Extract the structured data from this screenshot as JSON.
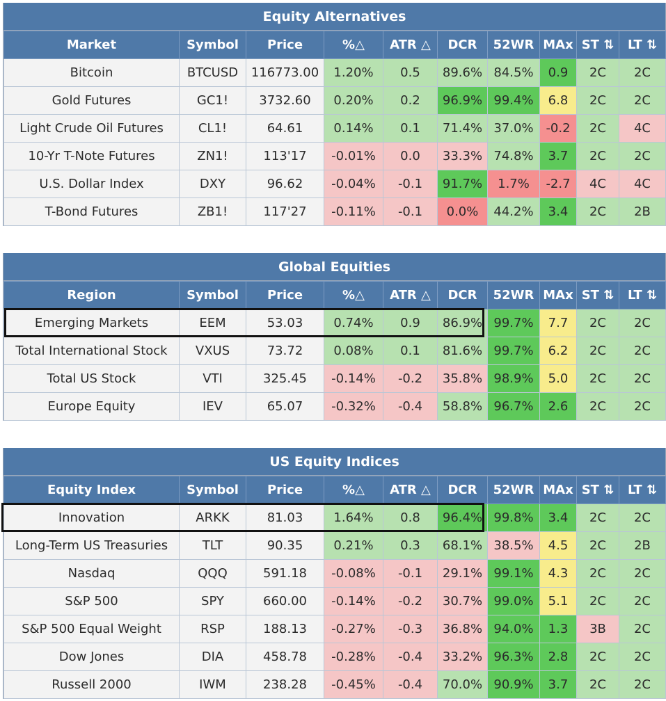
{
  "colors": {
    "header_bg": "#4f79a8",
    "green_light": "#b7e1b0",
    "green_strong": "#5ec95a",
    "red_light": "#f5c6c6",
    "red_strong": "#f59090",
    "yellow": "#f8ec8c"
  },
  "sections": [
    {
      "title": "Equity Alternatives",
      "headers": [
        "Market",
        "Symbol",
        "Price",
        "%△",
        "ATR △",
        "DCR",
        "52WR",
        "MAx",
        "ST ⇅",
        "LT ⇅"
      ],
      "rows": [
        {
          "name": "Bitcoin",
          "symbol": "BTCUSD",
          "price": "116773.00",
          "pct": "1.20%",
          "atr": "0.5",
          "dcr": "89.6%",
          "wr52": "84.5%",
          "max": "0.9",
          "st": "2C",
          "lt": "2C",
          "colors": [
            "g",
            "g",
            "g",
            "g",
            "G",
            "g",
            "g"
          ]
        },
        {
          "name": "Gold Futures",
          "symbol": "GC1!",
          "price": "3732.60",
          "pct": "0.20%",
          "atr": "0.2",
          "dcr": "96.9%",
          "wr52": "99.4%",
          "max": "6.8",
          "st": "2C",
          "lt": "2C",
          "colors": [
            "g",
            "g",
            "G",
            "G",
            "y",
            "g",
            "g"
          ]
        },
        {
          "name": "Light Crude Oil Futures",
          "symbol": "CL1!",
          "price": "64.61",
          "pct": "0.14%",
          "atr": "0.1",
          "dcr": "71.4%",
          "wr52": "37.0%",
          "max": "-0.2",
          "st": "2C",
          "lt": "4C",
          "colors": [
            "g",
            "g",
            "g",
            "g",
            "R",
            "g",
            "r"
          ]
        },
        {
          "name": "10-Yr T-Note Futures",
          "symbol": "ZN1!",
          "price": "113'17",
          "pct": "-0.01%",
          "atr": "0.0",
          "dcr": "33.3%",
          "wr52": "74.8%",
          "max": "3.7",
          "st": "2C",
          "lt": "2C",
          "colors": [
            "r",
            "r",
            "r",
            "g",
            "G",
            "g",
            "g"
          ]
        },
        {
          "name": "U.S. Dollar Index",
          "symbol": "DXY",
          "price": "96.62",
          "pct": "-0.04%",
          "atr": "-0.1",
          "dcr": "91.7%",
          "wr52": "1.7%",
          "max": "-2.7",
          "st": "4C",
          "lt": "4C",
          "colors": [
            "r",
            "r",
            "G",
            "R",
            "R",
            "r",
            "r"
          ]
        },
        {
          "name": "T-Bond Futures",
          "symbol": "ZB1!",
          "price": "117'27",
          "pct": "-0.11%",
          "atr": "-0.1",
          "dcr": "0.0%",
          "wr52": "44.2%",
          "max": "3.4",
          "st": "2C",
          "lt": "2B",
          "colors": [
            "r",
            "r",
            "R",
            "g",
            "G",
            "g",
            "g"
          ]
        }
      ]
    },
    {
      "title": "Global Equities",
      "headers": [
        "Region",
        "Symbol",
        "Price",
        "%△",
        "ATR △",
        "DCR",
        "52WR",
        "MAx",
        "ST ⇅",
        "LT ⇅"
      ],
      "rows": [
        {
          "name": "Emerging Markets",
          "symbol": "EEM",
          "price": "53.03",
          "pct": "0.74%",
          "atr": "0.9",
          "dcr": "86.9%",
          "wr52": "99.7%",
          "max": "7.7",
          "st": "2C",
          "lt": "2C",
          "colors": [
            "g",
            "g",
            "g",
            "G",
            "y",
            "g",
            "g"
          ]
        },
        {
          "name": "Total International Stock",
          "symbol": "VXUS",
          "price": "73.72",
          "pct": "0.08%",
          "atr": "0.1",
          "dcr": "81.6%",
          "wr52": "99.7%",
          "max": "6.2",
          "st": "2C",
          "lt": "2C",
          "colors": [
            "g",
            "g",
            "g",
            "G",
            "y",
            "g",
            "g"
          ]
        },
        {
          "name": "Total US Stock",
          "symbol": "VTI",
          "price": "325.45",
          "pct": "-0.14%",
          "atr": "-0.2",
          "dcr": "35.8%",
          "wr52": "98.9%",
          "max": "5.0",
          "st": "2C",
          "lt": "2C",
          "colors": [
            "r",
            "r",
            "r",
            "G",
            "y",
            "g",
            "g"
          ]
        },
        {
          "name": "Europe Equity",
          "symbol": "IEV",
          "price": "65.07",
          "pct": "-0.32%",
          "atr": "-0.4",
          "dcr": "58.8%",
          "wr52": "96.7%",
          "max": "2.6",
          "st": "2C",
          "lt": "2C",
          "colors": [
            "r",
            "r",
            "g",
            "G",
            "G",
            "g",
            "g"
          ]
        }
      ]
    },
    {
      "title": "US Equity Indices",
      "headers": [
        "Equity Index",
        "Symbol",
        "Price",
        "%△",
        "ATR △",
        "DCR",
        "52WR",
        "MAx",
        "ST ⇅",
        "LT ⇅"
      ],
      "rows": [
        {
          "name": "Innovation",
          "symbol": "ARKK",
          "price": "81.03",
          "pct": "1.64%",
          "atr": "0.8",
          "dcr": "96.4%",
          "wr52": "99.8%",
          "max": "3.4",
          "st": "2C",
          "lt": "2C",
          "colors": [
            "g",
            "g",
            "G",
            "G",
            "G",
            "g",
            "g"
          ]
        },
        {
          "name": "Long-Term US Treasuries",
          "symbol": "TLT",
          "price": "90.35",
          "pct": "0.21%",
          "atr": "0.3",
          "dcr": "68.1%",
          "wr52": "38.5%",
          "max": "4.5",
          "st": "2C",
          "lt": "2B",
          "colors": [
            "g",
            "g",
            "g",
            "r",
            "y",
            "g",
            "g"
          ]
        },
        {
          "name": "Nasdaq",
          "symbol": "QQQ",
          "price": "591.18",
          "pct": "-0.08%",
          "atr": "-0.1",
          "dcr": "29.1%",
          "wr52": "99.1%",
          "max": "4.3",
          "st": "2C",
          "lt": "2C",
          "colors": [
            "r",
            "r",
            "r",
            "G",
            "y",
            "g",
            "g"
          ]
        },
        {
          "name": "S&P 500",
          "symbol": "SPY",
          "price": "660.00",
          "pct": "-0.14%",
          "atr": "-0.2",
          "dcr": "30.7%",
          "wr52": "99.0%",
          "max": "5.1",
          "st": "2C",
          "lt": "2C",
          "colors": [
            "r",
            "r",
            "r",
            "G",
            "y",
            "g",
            "g"
          ]
        },
        {
          "name": "S&P 500 Equal Weight",
          "symbol": "RSP",
          "price": "188.13",
          "pct": "-0.27%",
          "atr": "-0.3",
          "dcr": "36.8%",
          "wr52": "94.0%",
          "max": "1.3",
          "st": "3B",
          "lt": "2C",
          "colors": [
            "r",
            "r",
            "r",
            "G",
            "G",
            "r",
            "g"
          ]
        },
        {
          "name": "Dow Jones",
          "symbol": "DIA",
          "price": "458.78",
          "pct": "-0.28%",
          "atr": "-0.4",
          "dcr": "33.2%",
          "wr52": "96.3%",
          "max": "2.8",
          "st": "2C",
          "lt": "2C",
          "colors": [
            "r",
            "r",
            "r",
            "G",
            "G",
            "g",
            "g"
          ]
        },
        {
          "name": "Russell 2000",
          "symbol": "IWM",
          "price": "238.28",
          "pct": "-0.45%",
          "atr": "-0.4",
          "dcr": "70.0%",
          "wr52": "90.9%",
          "max": "3.7",
          "st": "2C",
          "lt": "2C",
          "colors": [
            "r",
            "r",
            "g",
            "G",
            "G",
            "g",
            "g"
          ]
        }
      ]
    }
  ]
}
